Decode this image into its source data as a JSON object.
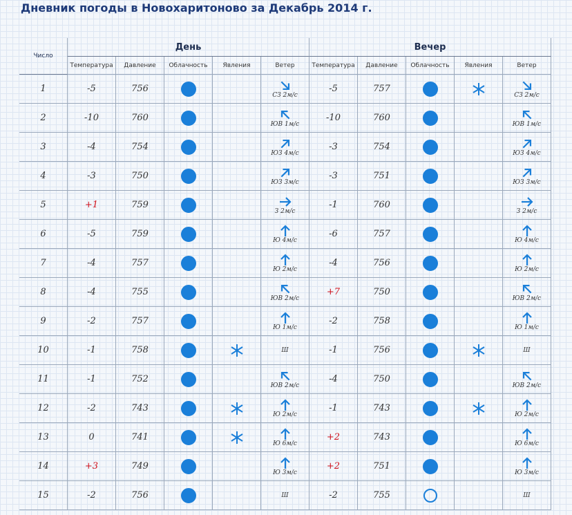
{
  "header": {
    "title": "Дневник погоды в Новохаритоново за Декабрь 2014 г."
  },
  "table": {
    "day_col": "Число",
    "groups": [
      "День",
      "Вечер"
    ],
    "subheaders": [
      "Температура",
      "Давление",
      "Облачность",
      "Явления",
      "Ветер",
      "Температура",
      "Давление",
      "Облачность",
      "Явления",
      "Ветер"
    ],
    "rows": [
      [
        "1",
        "-5",
        "756",
        "СЗ 2м/с",
        "-5",
        "757",
        "СЗ 2м/с"
      ],
      [
        "2",
        "-10",
        "760",
        "ЮВ 1м/с",
        "-10",
        "760",
        "ЮВ 1м/с"
      ],
      [
        "3",
        "-4",
        "754",
        "ЮЗ 4м/с",
        "-3",
        "754",
        "ЮЗ 4м/с"
      ],
      [
        "4",
        "-3",
        "750",
        "ЮЗ 3м/с",
        "-3",
        "751",
        "ЮЗ 3м/с"
      ],
      [
        "5",
        "+1",
        "759",
        "З 2м/с",
        "-1",
        "760",
        "З 2м/с"
      ],
      [
        "6",
        "-5",
        "759",
        "Ю 4м/с",
        "-6",
        "757",
        "Ю 4м/с"
      ],
      [
        "7",
        "-4",
        "757",
        "Ю 2м/с",
        "-4",
        "756",
        "Ю 2м/с"
      ],
      [
        "8",
        "-4",
        "755",
        "ЮВ 2м/с",
        "+7",
        "750",
        "ЮВ 2м/с"
      ],
      [
        "9",
        "-2",
        "757",
        "Ю 1м/с",
        "-2",
        "758",
        "Ю 1м/с"
      ],
      [
        "10",
        "-1",
        "758",
        "Ш",
        "-1",
        "756",
        "Ш"
      ],
      [
        "11",
        "-1",
        "752",
        "ЮВ 2м/с",
        "-4",
        "750",
        "ЮВ 2м/с"
      ],
      [
        "12",
        "-2",
        "743",
        "Ю 2м/с",
        "-1",
        "743",
        "Ю 2м/с"
      ],
      [
        "13",
        "0",
        "741",
        "Ю 6м/с",
        "+2",
        "743",
        "Ю 6м/с"
      ],
      [
        "14",
        "+3",
        "749",
        "Ю 3м/с",
        "+2",
        "751",
        "Ю 3м/с"
      ],
      [
        "15",
        "-2",
        "756",
        "Ш",
        "-2",
        "755",
        "Ш"
      ]
    ]
  }
}
